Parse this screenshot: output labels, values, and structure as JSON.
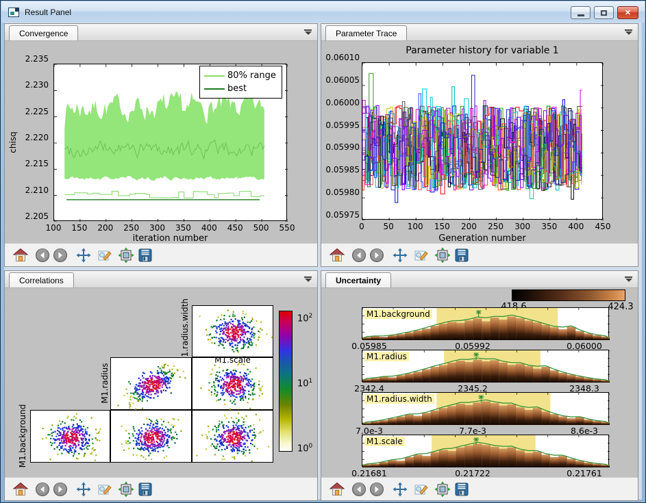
{
  "window": {
    "title": "Result Panel",
    "controls": {
      "minimize": "minimize-button",
      "maximize": "maximize-button",
      "close": "close-button"
    }
  },
  "toolbar": {
    "buttons": [
      "home",
      "back",
      "forward",
      "pan",
      "edit-parameters",
      "configure-subplots",
      "save"
    ]
  },
  "panels": {
    "convergence": {
      "tab": "Convergence",
      "chart": {
        "type": "line",
        "ylabel": "chisq",
        "xlabel": "iteration number",
        "yticks": [
          "2.235",
          "2.230",
          "2.225",
          "2.220",
          "2.215",
          "2.210",
          "2.205"
        ],
        "xticks": [
          "100",
          "150",
          "200",
          "250",
          "300",
          "350",
          "400",
          "450",
          "500",
          "550"
        ],
        "ylim": [
          2.205,
          2.235
        ],
        "xlim": [
          100,
          550
        ],
        "legend": [
          {
            "label": "80% range",
            "color": "#8ddc66"
          },
          {
            "label": "best",
            "color": "#1f7a1f"
          }
        ],
        "series_summary": {
          "band_x_range": [
            120,
            505
          ],
          "band_y_range": [
            2.213,
            2.229
          ],
          "median_y_range": [
            2.216,
            2.222
          ],
          "population_best_y": 2.21,
          "best_y": 2.2092
        }
      }
    },
    "parameter_trace": {
      "tab": "Parameter Trace",
      "chart": {
        "type": "line",
        "title": "Parameter history for variable 1",
        "xlabel": "Generation number",
        "yticks": [
          "0.06010",
          "0.06005",
          "0.06000",
          "0.05995",
          "0.05990",
          "0.05985",
          "0.05980",
          "0.05975"
        ],
        "xticks": [
          "0",
          "50",
          "100",
          "150",
          "200",
          "250",
          "300",
          "350",
          "400",
          "450"
        ],
        "ylim": [
          0.05975,
          0.0601
        ],
        "xlim": [
          0,
          450
        ],
        "series_summary": {
          "n_walkers": 16,
          "x_range": [
            0,
            410
          ],
          "y_bulk_range": [
            0.05978,
            0.06008
          ]
        }
      }
    },
    "correlations": {
      "tab": "Correlations",
      "axis_labels": {
        "row1": "M1.radius.width",
        "row2": "M1.radius",
        "row3": "M1.background",
        "scale_title": "M1.scale"
      },
      "colorbar": {
        "base": "10",
        "exponents": [
          "2",
          "1",
          "0"
        ]
      }
    },
    "uncertainty": {
      "tab": "Uncertainty",
      "colorbar": {
        "left_label": "418.6",
        "right_label": "424.3"
      },
      "histograms": [
        {
          "label": "M1.background",
          "ticks": [
            "0.05985",
            "0.05992",
            "0.06000"
          ],
          "band": [
            0.3,
            0.79
          ],
          "marker": 0.47,
          "bars": [
            0.1,
            0.13,
            0.11,
            0.16,
            0.2,
            0.26,
            0.32,
            0.38,
            0.47,
            0.54,
            0.6,
            0.57,
            0.65,
            0.72,
            0.62,
            0.74,
            0.68,
            0.78,
            0.72,
            0.64,
            0.58,
            0.5,
            0.42,
            0.36,
            0.44,
            0.3,
            0.22,
            0.16,
            0.12
          ]
        },
        {
          "label": "M1.radius",
          "ticks": [
            "2342.4",
            "2345.2",
            "2348.3"
          ],
          "band": [
            0.33,
            0.72
          ],
          "marker": 0.46,
          "bars": [
            0.12,
            0.15,
            0.19,
            0.17,
            0.24,
            0.3,
            0.36,
            0.44,
            0.52,
            0.58,
            0.66,
            0.72,
            0.68,
            0.76,
            0.7,
            0.74,
            0.66,
            0.58,
            0.62,
            0.54,
            0.46,
            0.52,
            0.4,
            0.32,
            0.26,
            0.2,
            0.15,
            0.11,
            0.08
          ]
        },
        {
          "label": "M1.radius.width",
          "ticks": [
            "7.0e-3",
            "7.7e-3",
            "8.6e-3"
          ],
          "band": [
            0.3,
            0.76
          ],
          "marker": 0.48,
          "bars": [
            0.08,
            0.12,
            0.16,
            0.22,
            0.28,
            0.34,
            0.3,
            0.4,
            0.48,
            0.56,
            0.62,
            0.7,
            0.66,
            0.74,
            0.78,
            0.72,
            0.64,
            0.68,
            0.58,
            0.5,
            0.56,
            0.44,
            0.36,
            0.28,
            0.22,
            0.26,
            0.18,
            0.13,
            0.1
          ]
        },
        {
          "label": "M1.scale",
          "ticks": [
            "0.21681",
            "0.21722",
            "0.21761"
          ],
          "band": [
            0.28,
            0.7
          ],
          "marker": 0.46,
          "bars": [
            0.1,
            0.12,
            0.18,
            0.24,
            0.22,
            0.34,
            0.42,
            0.38,
            0.5,
            0.58,
            0.54,
            0.66,
            0.72,
            0.78,
            0.74,
            0.68,
            0.62,
            0.66,
            0.56,
            0.48,
            0.52,
            0.42,
            0.34,
            0.38,
            0.28,
            0.22,
            0.16,
            0.12,
            0.09
          ]
        }
      ]
    }
  }
}
